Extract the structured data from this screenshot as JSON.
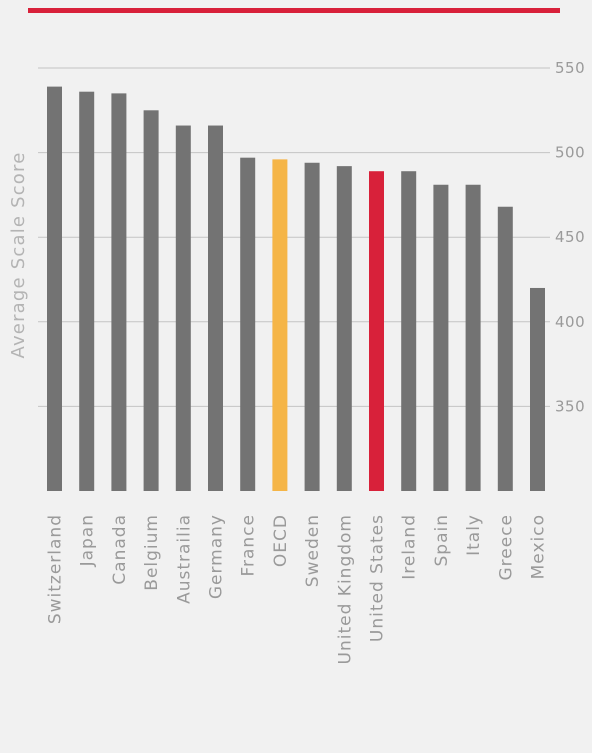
{
  "chart_data": {
    "type": "bar",
    "title": "",
    "xlabel": "",
    "ylabel": "Average Scale Score",
    "ylim": [
      300,
      550
    ],
    "yticks": [
      350,
      400,
      450,
      500,
      550
    ],
    "grid": true,
    "categories": [
      "Switzerland",
      "Japan",
      "Canada",
      "Belgium",
      "Austrailia",
      "Germany",
      "France",
      "OECD",
      "Sweden",
      "United Kingdom",
      "United States",
      "Ireland",
      "Spain",
      "Italy",
      "Greece",
      "Mexico"
    ],
    "values": [
      539,
      536,
      535,
      525,
      516,
      516,
      497,
      496,
      494,
      492,
      489,
      489,
      481,
      481,
      468,
      420
    ],
    "highlights": {
      "OECD": "#f5b547",
      "United States": "#d8213a"
    }
  },
  "colors": {
    "accent_bar": "#d8213a",
    "bar": "#737373",
    "grid": "#c4c4c4",
    "background": "#f1f1f1"
  }
}
